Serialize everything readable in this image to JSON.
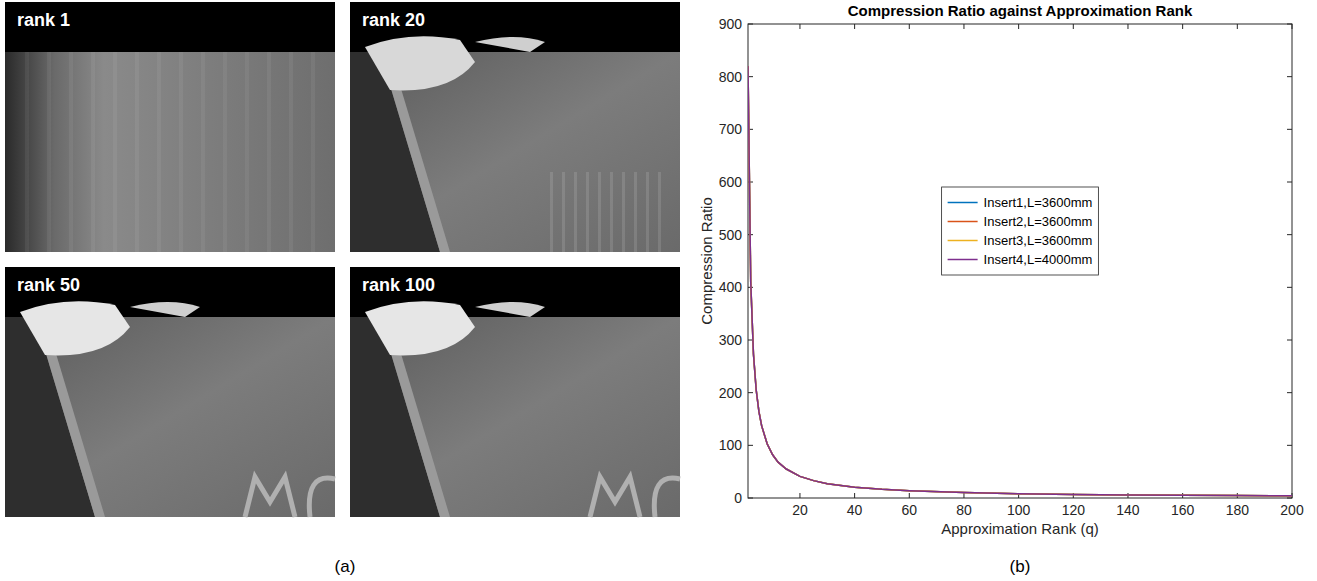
{
  "chart_data": {
    "type": "line",
    "title": "Compression Ratio against Approximation Rank",
    "x_label": "Approximation Rank (q)",
    "y_label": "Compression Ratio",
    "x": [
      1,
      2,
      3,
      4,
      5,
      6,
      8,
      10,
      12,
      15,
      20,
      25,
      30,
      40,
      50,
      60,
      80,
      100,
      120,
      140,
      160,
      180,
      200
    ],
    "series": [
      {
        "name": "Insert1,L=3600mm",
        "color": "#0072bd",
        "values": [
          820,
          410,
          273,
          205,
          164,
          137,
          103,
          82,
          68,
          55,
          41,
          33,
          27,
          20.5,
          16.4,
          13.7,
          10.3,
          8.2,
          6.8,
          5.9,
          5.1,
          4.6,
          4.1
        ]
      },
      {
        "name": "Insert2,L=3600mm",
        "color": "#d95319",
        "values": [
          820,
          410,
          273,
          205,
          164,
          137,
          103,
          82,
          68,
          55,
          41,
          33,
          27,
          20.5,
          16.4,
          13.7,
          10.3,
          8.2,
          6.8,
          5.9,
          5.1,
          4.6,
          4.1
        ]
      },
      {
        "name": "Insert3,L=3600mm",
        "color": "#edb120",
        "values": [
          820,
          410,
          273,
          205,
          164,
          137,
          103,
          82,
          68,
          55,
          41,
          33,
          27,
          20.5,
          16.4,
          13.7,
          10.3,
          8.2,
          6.8,
          5.9,
          5.1,
          4.6,
          4.1
        ]
      },
      {
        "name": "Insert4,L=4000mm",
        "color": "#7e2f8e",
        "values": [
          820,
          410,
          273,
          205,
          164,
          137,
          103,
          82,
          68,
          55,
          41,
          33,
          27,
          20.5,
          16.4,
          13.7,
          10.3,
          8.2,
          6.8,
          5.9,
          5.1,
          4.6,
          4.1
        ]
      }
    ],
    "xlim": [
      1,
      200
    ],
    "xticks": [
      20,
      40,
      60,
      80,
      100,
      120,
      140,
      160,
      180,
      200
    ],
    "ylim": [
      0,
      900
    ],
    "yticks": [
      0,
      100,
      200,
      300,
      400,
      500,
      600,
      700,
      800,
      900
    ],
    "grid": false,
    "legend": "center"
  },
  "figure": {
    "panel_a": {
      "caption": "(a)",
      "images": [
        {
          "label": "rank 1"
        },
        {
          "label": "rank 20"
        },
        {
          "label": "rank 50"
        },
        {
          "label": "rank 100"
        }
      ]
    },
    "panel_b_caption": "(b)"
  }
}
